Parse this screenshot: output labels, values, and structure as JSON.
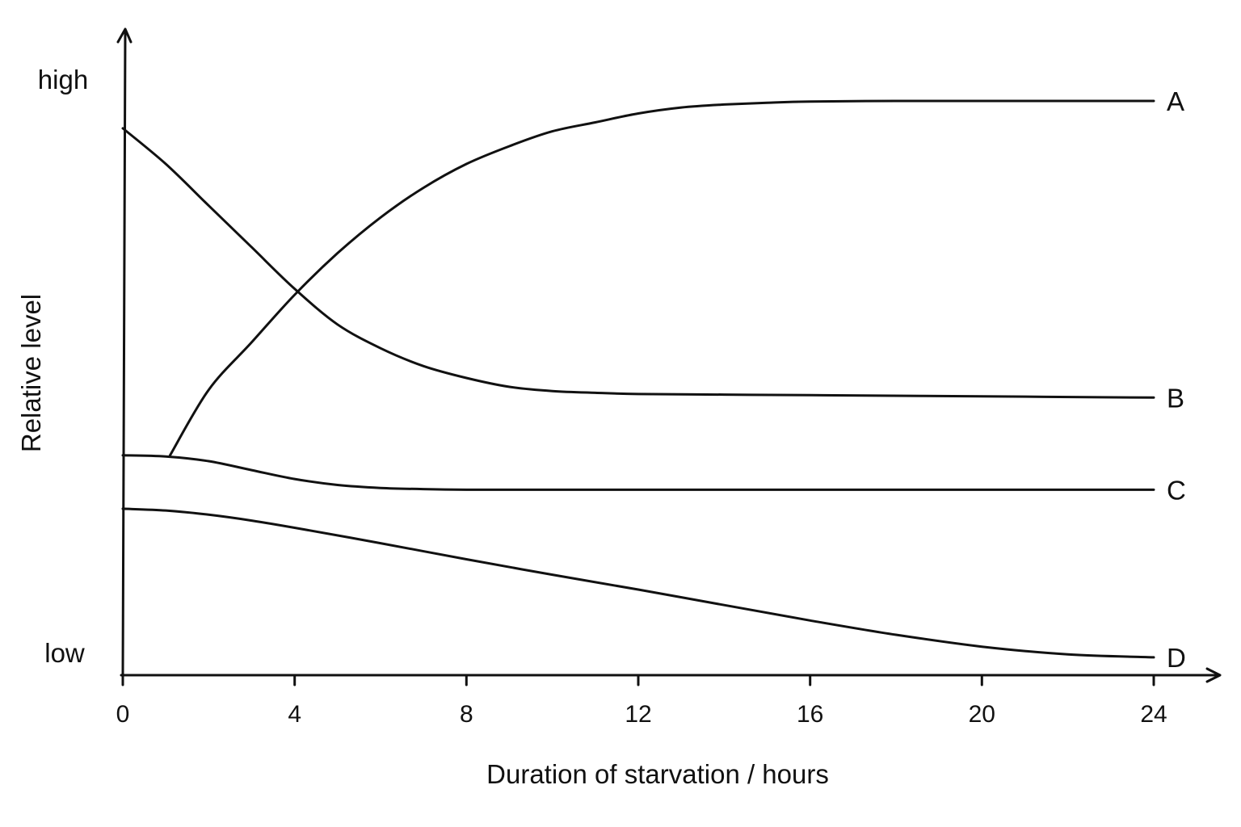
{
  "chart_data": {
    "type": "line",
    "title": "",
    "xlabel": "Duration of starvation / hours",
    "ylabel": "Relative level",
    "xlim": [
      0,
      24
    ],
    "ylim": [
      0,
      1
    ],
    "x_ticks": [
      "0",
      "4",
      "8",
      "12",
      "16",
      "20",
      "24"
    ],
    "y_level_labels": {
      "high": "high",
      "low": "low"
    },
    "grid": false,
    "legend": "none",
    "series": [
      {
        "name": "A",
        "x": [
          1.1,
          2,
          3,
          4,
          5,
          6,
          7,
          8,
          9,
          10,
          11,
          12,
          13,
          14,
          15,
          16,
          18,
          20,
          22,
          24
        ],
        "y": [
          0.37,
          0.48,
          0.56,
          0.64,
          0.71,
          0.77,
          0.82,
          0.86,
          0.89,
          0.915,
          0.93,
          0.945,
          0.955,
          0.96,
          0.963,
          0.965,
          0.966,
          0.966,
          0.966,
          0.966
        ]
      },
      {
        "name": "B",
        "x": [
          0,
          1,
          2,
          3,
          4,
          5,
          6,
          7,
          8,
          9,
          10,
          11,
          12,
          14,
          16,
          20,
          24
        ],
        "y": [
          0.92,
          0.86,
          0.79,
          0.72,
          0.65,
          0.59,
          0.55,
          0.52,
          0.5,
          0.485,
          0.478,
          0.475,
          0.473,
          0.472,
          0.471,
          0.469,
          0.467
        ]
      },
      {
        "name": "C",
        "x": [
          0,
          1,
          2,
          3,
          4,
          5,
          6,
          7,
          8,
          10,
          12,
          16,
          20,
          24
        ],
        "y": [
          0.37,
          0.368,
          0.36,
          0.345,
          0.33,
          0.32,
          0.315,
          0.313,
          0.312,
          0.312,
          0.312,
          0.312,
          0.312,
          0.312
        ]
      },
      {
        "name": "D",
        "x": [
          0,
          1,
          2,
          3,
          4,
          6,
          8,
          10,
          12,
          14,
          16,
          18,
          20,
          22,
          24
        ],
        "y": [
          0.28,
          0.277,
          0.27,
          0.26,
          0.248,
          0.222,
          0.195,
          0.169,
          0.144,
          0.118,
          0.092,
          0.068,
          0.048,
          0.035,
          0.03
        ]
      }
    ]
  }
}
